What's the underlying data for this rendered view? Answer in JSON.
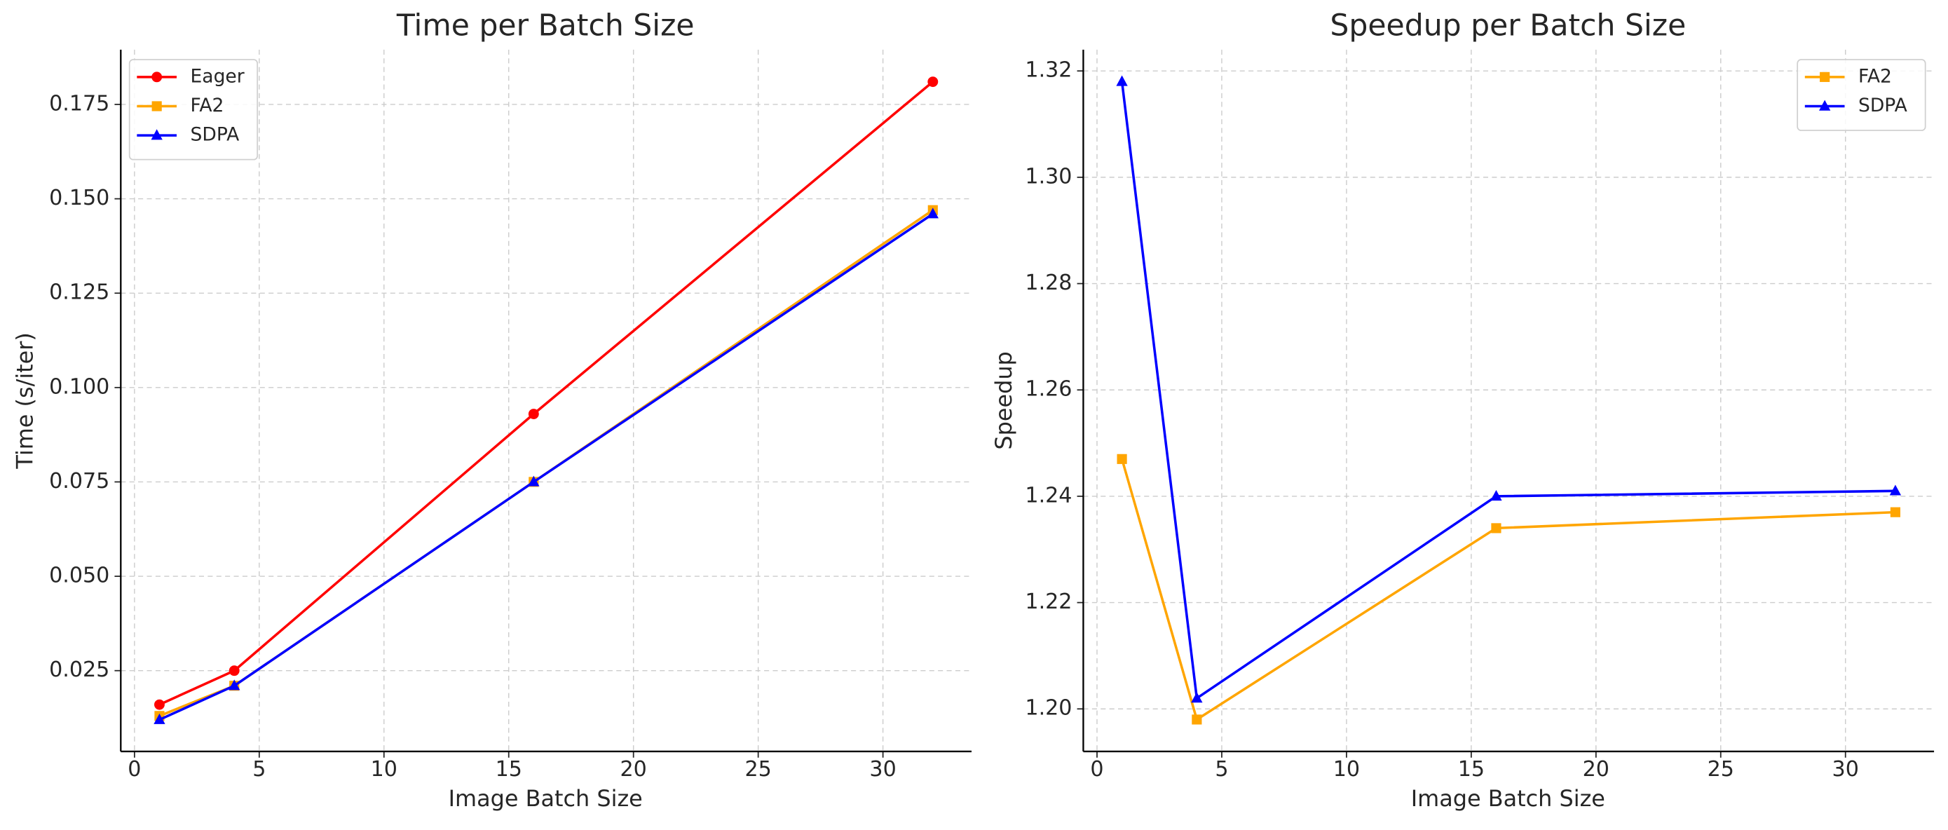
{
  "chart_data": [
    {
      "type": "line",
      "title": "Time per Batch Size",
      "x_label": "Image Batch Size",
      "y_label": "Time (s/iter)",
      "x": [
        1,
        4,
        16,
        32
      ],
      "series": [
        {
          "name": "Eager",
          "color": "#ff0000",
          "marker": "circle",
          "values": [
            0.016,
            0.025,
            0.093,
            0.181
          ]
        },
        {
          "name": "FA2",
          "color": "#ffa500",
          "marker": "square",
          "values": [
            0.013,
            0.021,
            0.075,
            0.147
          ]
        },
        {
          "name": "SDPA",
          "color": "#0000ff",
          "marker": "triangle",
          "values": [
            0.012,
            0.021,
            0.075,
            0.146
          ]
        }
      ],
      "xlim": [
        -0.55,
        33.55
      ],
      "xticks": [
        0,
        5,
        10,
        15,
        20,
        25,
        30
      ],
      "ylim": [
        0.0036,
        0.1895
      ],
      "yticks": [
        0.025,
        {
          "value": 0.05,
          "label": "0.050"
        },
        0.075,
        {
          "value": 0.1,
          "label": "0.100"
        },
        0.125,
        {
          "value": 0.15,
          "label": "0.150"
        },
        0.175
      ],
      "grid": true,
      "legend": "upper-left"
    },
    {
      "type": "line",
      "title": "Speedup per Batch Size",
      "x_label": "Image Batch Size",
      "y_label": "Speedup",
      "x": [
        1,
        4,
        16,
        32
      ],
      "series": [
        {
          "name": "FA2",
          "color": "#ffa500",
          "marker": "square",
          "values": [
            1.247,
            1.198,
            1.234,
            1.237
          ]
        },
        {
          "name": "SDPA",
          "color": "#0000ff",
          "marker": "triangle",
          "values": [
            1.318,
            1.202,
            1.24,
            1.241
          ]
        }
      ],
      "xlim": [
        -0.55,
        33.55
      ],
      "xticks": [
        0,
        5,
        10,
        15,
        20,
        25,
        30
      ],
      "ylim": [
        1.192,
        1.324
      ],
      "yticks": [
        {
          "value": 1.2,
          "label": "1.20"
        },
        1.22,
        1.24,
        1.26,
        1.28,
        {
          "value": 1.3,
          "label": "1.30"
        },
        1.32
      ],
      "grid": true,
      "legend": "upper-right"
    }
  ]
}
